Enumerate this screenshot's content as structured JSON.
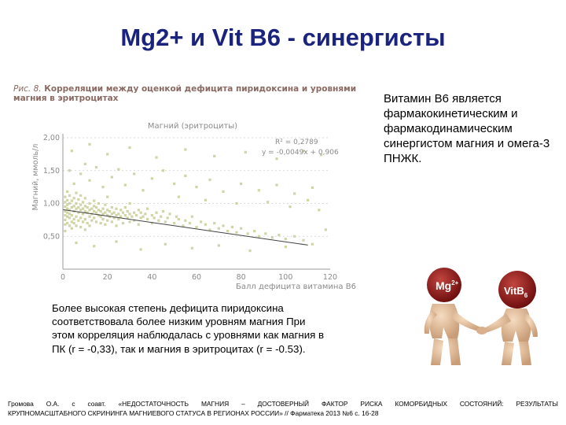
{
  "slide": {
    "title": "Mg2+ и Vit B6 - синергисты"
  },
  "figure": {
    "caption_prefix": "Рис. 8.",
    "caption_text": "Корреляции между оценкой дефицита пиридоксина и уровнями магния в эритроцитах",
    "chart_data": {
      "type": "scatter",
      "title": "Магний (эритроциты)",
      "xlabel": "Балл дефицита витамина B6",
      "ylabel": "Магний, ммоль/л",
      "xlim": [
        0,
        120
      ],
      "ylim": [
        0,
        2.0
      ],
      "x_ticks": [
        "0",
        "20",
        "40",
        "60",
        "80",
        "100",
        "120"
      ],
      "y_ticks": [
        "0,50",
        "1,00",
        "1,50",
        "2,00"
      ],
      "annotation_r2": "R² = 0,2789",
      "annotation_eq": "y = -0,0049x + 0,906",
      "trendline": {
        "slope": -0.0049,
        "intercept": 0.906,
        "x_range": [
          0,
          110
        ]
      },
      "points_note": "dense cloud, estimated",
      "points": [
        [
          1,
          0.82
        ],
        [
          1,
          0.95
        ],
        [
          1,
          1.02
        ],
        [
          1,
          0.88
        ],
        [
          1,
          0.75
        ],
        [
          1,
          0.68
        ],
        [
          1,
          1.1
        ],
        [
          1,
          0.58
        ],
        [
          2,
          0.92
        ],
        [
          2,
          1.05
        ],
        [
          2,
          0.8
        ],
        [
          2,
          0.7
        ],
        [
          2,
          1.18
        ],
        [
          2,
          0.86
        ],
        [
          2,
          0.98
        ],
        [
          3,
          0.9
        ],
        [
          3,
          0.78
        ],
        [
          3,
          1.0
        ],
        [
          3,
          0.66
        ],
        [
          3,
          1.12
        ],
        [
          3,
          0.84
        ],
        [
          4,
          0.94
        ],
        [
          4,
          0.72
        ],
        [
          4,
          1.04
        ],
        [
          4,
          0.82
        ],
        [
          4,
          0.62
        ],
        [
          5,
          0.88
        ],
        [
          5,
          0.96
        ],
        [
          5,
          0.76
        ],
        [
          5,
          1.08
        ],
        [
          5,
          0.7
        ],
        [
          6,
          0.92
        ],
        [
          6,
          0.8
        ],
        [
          6,
          1.0
        ],
        [
          6,
          0.66
        ],
        [
          6,
          1.16
        ],
        [
          7,
          0.86
        ],
        [
          7,
          0.94
        ],
        [
          7,
          0.74
        ],
        [
          7,
          1.06
        ],
        [
          8,
          0.9
        ],
        [
          8,
          0.78
        ],
        [
          8,
          0.98
        ],
        [
          8,
          0.64
        ],
        [
          8,
          1.12
        ],
        [
          9,
          0.84
        ],
        [
          9,
          0.92
        ],
        [
          9,
          0.72
        ],
        [
          9,
          1.02
        ],
        [
          10,
          0.88
        ],
        [
          10,
          0.96
        ],
        [
          10,
          0.76
        ],
        [
          10,
          1.08
        ],
        [
          10,
          0.6
        ],
        [
          11,
          0.86
        ],
        [
          11,
          0.94
        ],
        [
          11,
          0.7
        ],
        [
          12,
          0.9
        ],
        [
          12,
          0.8
        ],
        [
          12,
          1.0
        ],
        [
          12,
          0.66
        ],
        [
          13,
          0.84
        ],
        [
          13,
          0.92
        ],
        [
          13,
          0.74
        ],
        [
          14,
          0.88
        ],
        [
          14,
          0.96
        ],
        [
          14,
          0.78
        ],
        [
          14,
          1.04
        ],
        [
          15,
          0.86
        ],
        [
          15,
          0.72
        ],
        [
          15,
          0.94
        ],
        [
          16,
          0.82
        ],
        [
          16,
          0.9
        ],
        [
          16,
          1.0
        ],
        [
          17,
          0.8
        ],
        [
          17,
          0.88
        ],
        [
          17,
          0.7
        ],
        [
          18,
          0.84
        ],
        [
          18,
          0.92
        ],
        [
          18,
          0.76
        ],
        [
          19,
          0.86
        ],
        [
          19,
          0.98
        ],
        [
          19,
          0.68
        ],
        [
          20,
          0.82
        ],
        [
          20,
          0.9
        ],
        [
          20,
          0.74
        ],
        [
          20,
          1.1
        ],
        [
          21,
          0.8
        ],
        [
          21,
          0.88
        ],
        [
          22,
          0.84
        ],
        [
          22,
          0.94
        ],
        [
          22,
          0.72
        ],
        [
          23,
          0.86
        ],
        [
          23,
          0.78
        ],
        [
          24,
          0.82
        ],
        [
          24,
          0.92
        ],
        [
          24,
          0.66
        ],
        [
          25,
          0.84
        ],
        [
          25,
          0.76
        ],
        [
          26,
          0.8
        ],
        [
          26,
          0.9
        ],
        [
          27,
          0.86
        ],
        [
          27,
          0.7
        ],
        [
          28,
          0.82
        ],
        [
          28,
          0.94
        ],
        [
          29,
          0.78
        ],
        [
          29,
          0.88
        ],
        [
          30,
          0.84
        ],
        [
          30,
          0.72
        ],
        [
          30,
          1.0
        ],
        [
          31,
          0.8
        ],
        [
          32,
          0.86
        ],
        [
          32,
          0.74
        ],
        [
          33,
          0.82
        ],
        [
          34,
          0.9
        ],
        [
          34,
          0.68
        ],
        [
          35,
          0.78
        ],
        [
          35,
          0.86
        ],
        [
          36,
          0.8
        ],
        [
          37,
          0.84
        ],
        [
          38,
          0.76
        ],
        [
          38,
          0.92
        ],
        [
          40,
          0.82
        ],
        [
          40,
          0.7
        ],
        [
          41,
          0.78
        ],
        [
          42,
          0.86
        ],
        [
          43,
          0.74
        ],
        [
          44,
          0.8
        ],
        [
          45,
          0.88
        ],
        [
          46,
          0.72
        ],
        [
          47,
          0.78
        ],
        [
          48,
          0.84
        ],
        [
          50,
          0.7
        ],
        [
          51,
          0.8
        ],
        [
          52,
          0.76
        ],
        [
          54,
          0.66
        ],
        [
          55,
          0.74
        ],
        [
          57,
          0.7
        ],
        [
          58,
          0.8
        ],
        [
          60,
          0.64
        ],
        [
          62,
          0.72
        ],
        [
          64,
          0.68
        ],
        [
          66,
          0.6
        ],
        [
          68,
          0.7
        ],
        [
          70,
          0.62
        ],
        [
          72,
          0.66
        ],
        [
          74,
          0.58
        ],
        [
          76,
          0.64
        ],
        [
          78,
          0.56
        ],
        [
          80,
          0.62
        ],
        [
          83,
          0.54
        ],
        [
          86,
          0.58
        ],
        [
          88,
          0.5
        ],
        [
          91,
          0.54
        ],
        [
          94,
          0.48
        ],
        [
          97,
          0.52
        ],
        [
          100,
          0.46
        ],
        [
          104,
          0.5
        ],
        [
          108,
          0.44
        ],
        [
          3,
          1.5
        ],
        [
          5,
          1.3
        ],
        [
          8,
          1.45
        ],
        [
          10,
          1.6
        ],
        [
          12,
          1.35
        ],
        [
          15,
          1.55
        ],
        [
          18,
          1.25
        ],
        [
          22,
          1.4
        ],
        [
          25,
          1.52
        ],
        [
          28,
          1.28
        ],
        [
          32,
          1.45
        ],
        [
          36,
          1.2
        ],
        [
          40,
          1.38
        ],
        [
          45,
          1.5
        ],
        [
          50,
          1.3
        ],
        [
          55,
          1.42
        ],
        [
          60,
          1.25
        ],
        [
          66,
          1.36
        ],
        [
          72,
          1.18
        ],
        [
          80,
          1.3
        ],
        [
          88,
          1.2
        ],
        [
          96,
          1.28
        ],
        [
          104,
          1.15
        ],
        [
          112,
          1.24
        ],
        [
          4,
          1.8
        ],
        [
          12,
          1.9
        ],
        [
          20,
          1.75
        ],
        [
          30,
          1.85
        ],
        [
          42,
          1.7
        ],
        [
          55,
          1.82
        ],
        [
          68,
          1.72
        ],
        [
          82,
          1.78
        ],
        [
          96,
          1.68
        ],
        [
          108,
          1.8
        ],
        [
          116,
          1.74
        ],
        [
          6,
          0.4
        ],
        [
          14,
          0.35
        ],
        [
          24,
          0.42
        ],
        [
          35,
          0.3
        ],
        [
          46,
          0.38
        ],
        [
          58,
          0.32
        ],
        [
          70,
          0.36
        ],
        [
          84,
          0.28
        ],
        [
          100,
          0.34
        ],
        [
          112,
          0.38
        ],
        [
          118,
          0.6
        ],
        [
          115,
          0.9
        ],
        [
          110,
          1.05
        ],
        [
          102,
          0.95
        ],
        [
          92,
          1.02
        ],
        [
          78,
          1.0
        ],
        [
          64,
          1.05
        ],
        [
          52,
          1.1
        ]
      ]
    }
  },
  "right_text": "Витамин В6 является фармакокинетическим и фармакодинамическим синергистом магния и омега-3 ПНЖК.",
  "left_text": "Более высокая степень дефицита пиридоксина соответствовала более низким уровням магния При этом корреляция наблюдалась с уровнями как магния в ПК (r = -0,33), так и магния в эритроцитах (r = -0.53).",
  "reference": {
    "line1_words": [
      "Громова",
      "О.А.",
      "с",
      "соавт.",
      "«НЕДОСТАТОЧНОСТЬ",
      "МАГНИЯ",
      "–",
      "ДОСТОВЕРНЫЙ",
      "ФАКТОР",
      "РИСКА",
      "КОМОРБИДНЫХ",
      "СОСТОЯНИЙ:",
      "РЕЗУЛЬТАТЫ"
    ],
    "line2": "КРУПНОМАСШТАБНОГО СКРИНИНГА МАГНИЕВОГО СТАТУСА В РЕГИОНАХ РОССИИ» // Фарматека 2013 №6 с. 16-28"
  },
  "illustration": {
    "left_label": "Mg",
    "left_label_sup": "2+",
    "right_label": "VitB",
    "right_label_sub": "6",
    "colors": {
      "ball": "#8b1a1a",
      "skin": "#e9c9a6",
      "skin_shadow": "#c79d78"
    }
  }
}
